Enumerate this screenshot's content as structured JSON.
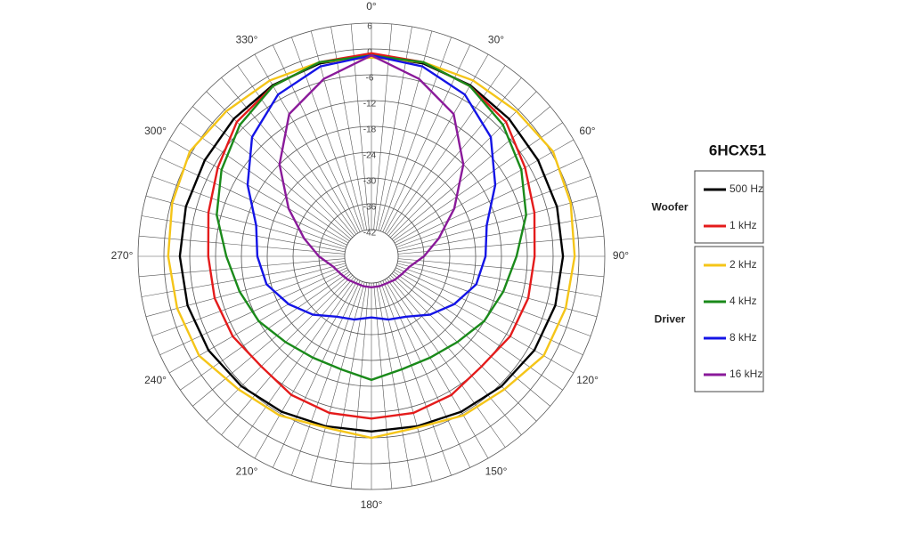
{
  "chart_data": {
    "type": "polar",
    "legend_title": "6HCX51",
    "theta": [
      0,
      15,
      30,
      45,
      60,
      75,
      90,
      105,
      120,
      135,
      150,
      165,
      180,
      195,
      210,
      225,
      240,
      255,
      270,
      285,
      300,
      315,
      330,
      345
    ],
    "rlim": [
      -42,
      6
    ],
    "rticks": [
      6,
      0,
      -6,
      -12,
      -18,
      -24,
      -30,
      -36,
      -42
    ],
    "thetaticks": [
      {
        "value": 0,
        "label": "0°"
      },
      {
        "value": 30,
        "label": "30°"
      },
      {
        "value": 60,
        "label": "60°"
      },
      {
        "value": 90,
        "label": "90°"
      },
      {
        "value": 120,
        "label": "120°"
      },
      {
        "value": 150,
        "label": "150°"
      },
      {
        "value": 180,
        "label": "180°"
      },
      {
        "value": 210,
        "label": "210°"
      },
      {
        "value": 240,
        "label": "240°"
      },
      {
        "value": 270,
        "label": "270°"
      },
      {
        "value": 300,
        "label": "300°"
      },
      {
        "value": 330,
        "label": "330°"
      }
    ],
    "series": [
      {
        "name": "500 Hz",
        "group": "Woofer",
        "color": "#000000",
        "values": [
          -1.5,
          -1.8,
          -2.3,
          -3,
          -3.5,
          -3.6,
          -3.7,
          -4,
          -4.5,
          -5.5,
          -6.5,
          -7.3,
          -7.5,
          -7.3,
          -6.5,
          -5.5,
          -4.5,
          -4,
          -3.7,
          -3.6,
          -3.5,
          -3,
          -2.3,
          -1.8
        ]
      },
      {
        "name": "1 kHz",
        "group": "Woofer",
        "color": "#e41b1b",
        "values": [
          -1,
          -1.5,
          -2.5,
          -4,
          -7,
          -9,
          -10.3,
          -10.5,
          -11,
          -12,
          -11,
          -10.5,
          -10.5,
          -10.5,
          -11,
          -12,
          -11,
          -10.5,
          -10.3,
          -9,
          -7,
          -4,
          -2.5,
          -1.5
        ]
      },
      {
        "name": "2 kHz",
        "group": "Driver",
        "color": "#f5c518",
        "values": [
          -2,
          -1.5,
          -1,
          -0.5,
          0.5,
          -0.3,
          -1,
          -1.5,
          -2,
          -4.5,
          -5.5,
          -7,
          -6,
          -7,
          -5.5,
          -4.5,
          -2,
          -1.5,
          -1,
          -0.3,
          0.5,
          -0.5,
          -1,
          -1.5
        ]
      },
      {
        "name": "4 kHz",
        "group": "Driver",
        "color": "#1a8a1a",
        "values": [
          -1.5,
          -1.5,
          -2.5,
          -5,
          -8,
          -11,
          -14.5,
          -16.5,
          -18,
          -20,
          -21,
          -21,
          -19.5,
          -21,
          -21,
          -20,
          -18,
          -16.5,
          -14.5,
          -11,
          -8,
          -5,
          -2.5,
          -1.5
        ]
      },
      {
        "name": "8 kHz",
        "group": "Driver",
        "color": "#1414e6",
        "values": [
          -1.5,
          -2.5,
          -4.8,
          -9,
          -15,
          -20.5,
          -21.7,
          -23,
          -26,
          -29,
          -32,
          -33,
          -34,
          -33,
          -32,
          -29,
          -26,
          -23,
          -21.7,
          -20.5,
          -15,
          -9,
          -4.8,
          -2.5
        ]
      },
      {
        "name": "16 kHz",
        "group": "Driver",
        "color": "#8a1a9a",
        "values": [
          -1.5,
          -5.5,
          -10,
          -18,
          -26,
          -32,
          -36,
          -39,
          -40,
          -40.5,
          -41,
          -41,
          -41,
          -41,
          -41,
          -40.5,
          -40,
          -39,
          -36,
          -32,
          -26,
          -18,
          -10,
          -5.5
        ]
      }
    ]
  }
}
